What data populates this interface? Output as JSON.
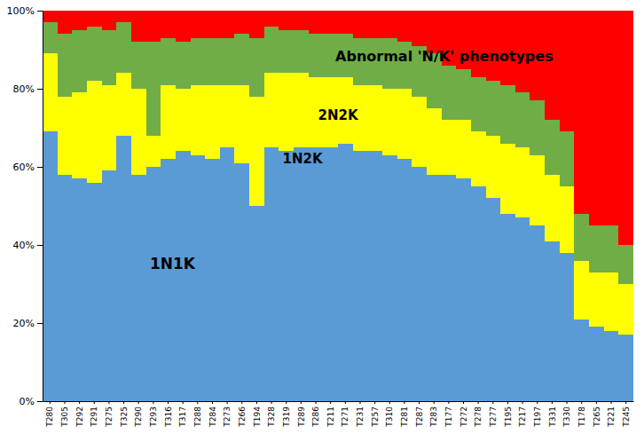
{
  "chart_data": {
    "type": "bar",
    "stacked": true,
    "categories": [
      "T280",
      "T305",
      "T292",
      "T291",
      "T275",
      "T325",
      "T290",
      "T293",
      "T316",
      "T317",
      "T288",
      "T284",
      "T273",
      "T266",
      "T194",
      "T328",
      "T319",
      "T289",
      "T286",
      "T211",
      "T271",
      "T231",
      "T257",
      "T310",
      "T281",
      "T287",
      "T283",
      "T177",
      "T272",
      "T278",
      "T277",
      "T195",
      "T217",
      "T197",
      "T331",
      "T330",
      "T178",
      "T265",
      "T221",
      "T245"
    ],
    "series": [
      {
        "color": "#5B9BD5",
        "values": [
          69,
          58,
          57,
          56,
          59,
          68,
          58,
          60,
          62,
          64,
          63,
          62,
          65,
          61,
          50,
          65,
          64,
          65,
          65,
          65,
          66,
          64,
          64,
          63,
          62,
          60,
          58,
          58,
          57,
          55,
          52,
          48,
          47,
          45,
          41,
          38,
          21,
          19,
          18,
          17
        ]
      },
      {
        "color": "#FFFF00",
        "values": [
          20,
          20,
          22,
          26,
          22,
          16,
          22,
          8,
          19,
          16,
          18,
          19,
          16,
          20,
          28,
          19,
          20,
          19,
          18,
          18,
          17,
          17,
          17,
          17,
          18,
          18,
          17,
          14,
          15,
          14,
          16,
          18,
          18,
          18,
          17,
          17,
          15,
          14,
          15,
          13
        ]
      },
      {
        "color": "#70AD47",
        "values": [
          8,
          16,
          16,
          14,
          14,
          13,
          12,
          24,
          12,
          12,
          12,
          12,
          12,
          13,
          15,
          12,
          11,
          11,
          11,
          11,
          11,
          12,
          12,
          13,
          12,
          13,
          14,
          14,
          13,
          14,
          14,
          15,
          14,
          14,
          14,
          14,
          12,
          12,
          12,
          10
        ]
      },
      {
        "color": "#FF0000",
        "values": [
          3,
          6,
          5,
          4,
          5,
          3,
          8,
          8,
          7,
          8,
          7,
          7,
          7,
          6,
          7,
          4,
          5,
          5,
          6,
          6,
          6,
          7,
          7,
          7,
          8,
          9,
          11,
          14,
          15,
          17,
          18,
          19,
          21,
          23,
          28,
          31,
          52,
          55,
          55,
          60
        ]
      }
    ],
    "annotations": [
      "Abnormal 'N/K' phenotypes",
      "2N2K",
      "1N2K",
      "1N1K"
    ],
    "ylim": [
      0,
      100
    ],
    "yticks": [
      {
        "value": 0,
        "label": "0%"
      },
      {
        "value": 20,
        "label": "20%"
      },
      {
        "value": 40,
        "label": "40%"
      },
      {
        "value": 60,
        "label": "60%"
      },
      {
        "value": 80,
        "label": "80%"
      },
      {
        "value": 100,
        "label": "100%"
      }
    ],
    "grid": false
  }
}
